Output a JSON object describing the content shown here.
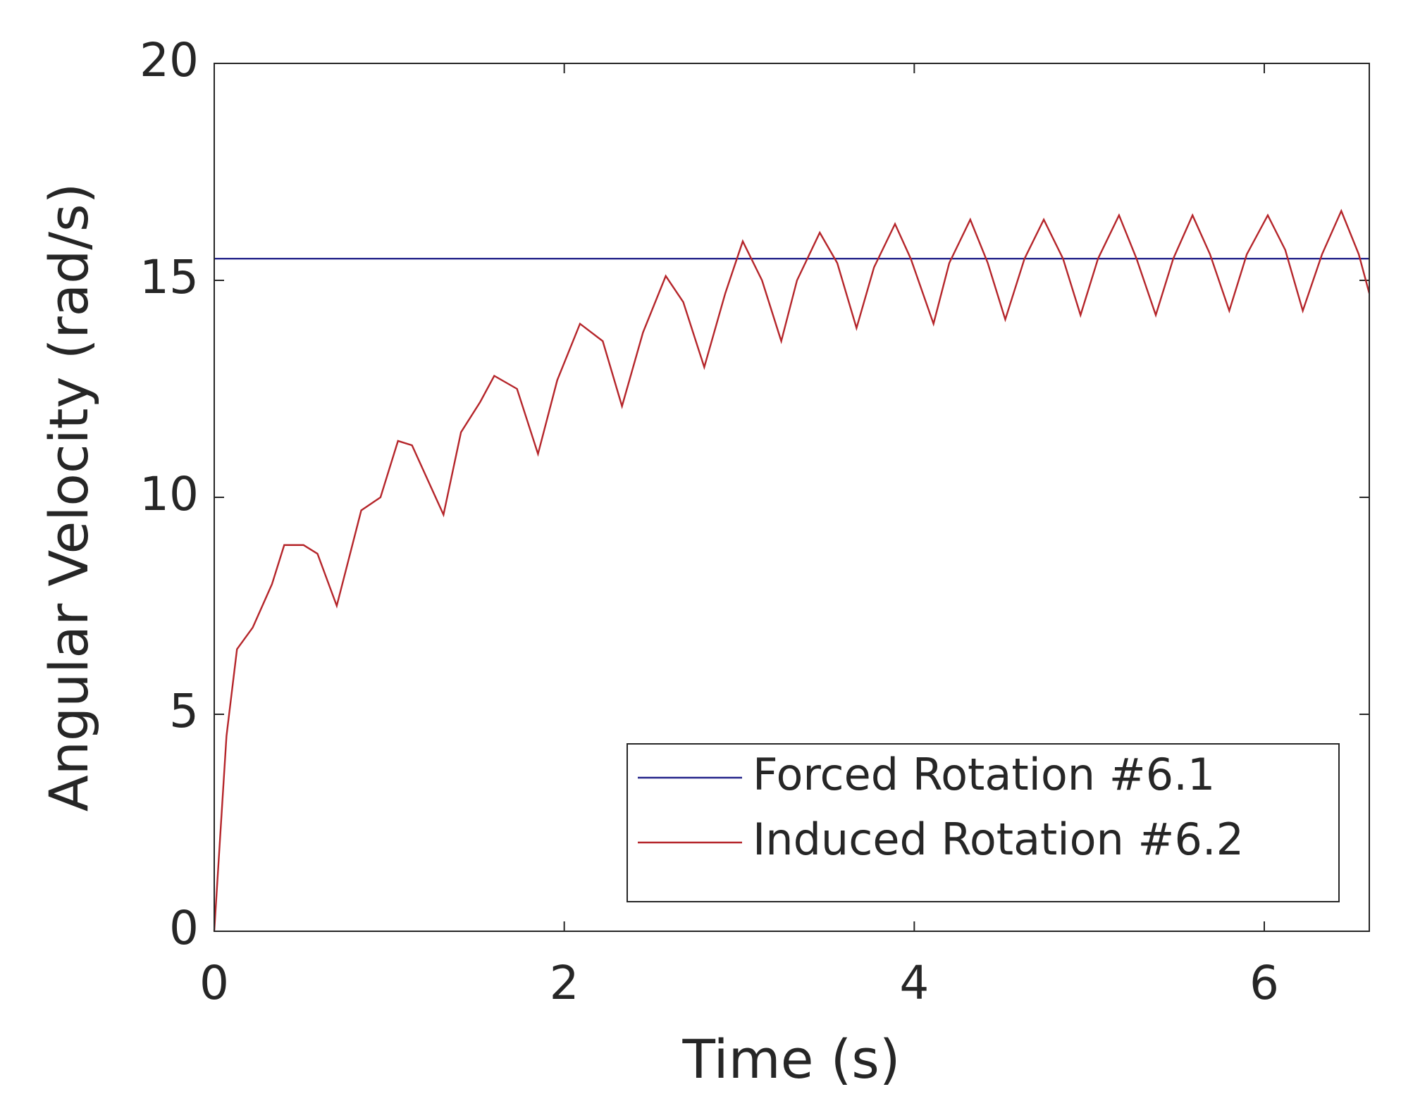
{
  "chart_data": {
    "type": "line",
    "xlabel": "Time (s)",
    "ylabel": "Angular Velocity (rad/s)",
    "xlim": [
      0,
      6.6
    ],
    "ylim": [
      0,
      20
    ],
    "xticks": [
      0,
      2,
      4,
      6
    ],
    "yticks": [
      0,
      5,
      10,
      15,
      20
    ],
    "legend": "lower right",
    "grid": false,
    "series": [
      {
        "name": "Forced Rotation #6.1",
        "color": "#24248a",
        "x": [
          0,
          6.6
        ],
        "values": [
          15.5,
          15.5
        ]
      },
      {
        "name": "Induced Rotation #6.2",
        "color": "#b5252a",
        "x": [
          0,
          0.07,
          0.13,
          0.22,
          0.33,
          0.4,
          0.51,
          0.59,
          0.7,
          0.84,
          0.95,
          1.05,
          1.13,
          1.31,
          1.41,
          1.52,
          1.6,
          1.73,
          1.85,
          1.96,
          2.09,
          2.22,
          2.33,
          2.45,
          2.58,
          2.68,
          2.8,
          2.92,
          3.02,
          3.13,
          3.24,
          3.33,
          3.46,
          3.56,
          3.67,
          3.77,
          3.89,
          3.98,
          4.11,
          4.2,
          4.32,
          4.42,
          4.52,
          4.63,
          4.74,
          4.85,
          4.95,
          5.05,
          5.17,
          5.27,
          5.38,
          5.48,
          5.59,
          5.69,
          5.8,
          5.9,
          6.02,
          6.12,
          6.22,
          6.33,
          6.44,
          6.54,
          6.6
        ],
        "values": [
          0,
          4.5,
          6.5,
          7.0,
          8.0,
          8.9,
          8.9,
          8.7,
          7.5,
          9.7,
          10.0,
          11.3,
          11.2,
          9.6,
          11.5,
          12.2,
          12.8,
          12.5,
          11.0,
          12.7,
          14.0,
          13.6,
          12.1,
          13.8,
          15.1,
          14.5,
          13.0,
          14.7,
          15.9,
          15.0,
          13.6,
          15.0,
          16.1,
          15.4,
          13.9,
          15.3,
          16.3,
          15.5,
          14.0,
          15.4,
          16.4,
          15.4,
          14.1,
          15.5,
          16.4,
          15.5,
          14.2,
          15.5,
          16.5,
          15.5,
          14.2,
          15.5,
          16.5,
          15.6,
          14.3,
          15.6,
          16.5,
          15.7,
          14.3,
          15.6,
          16.6,
          15.6,
          14.7
        ]
      }
    ]
  }
}
